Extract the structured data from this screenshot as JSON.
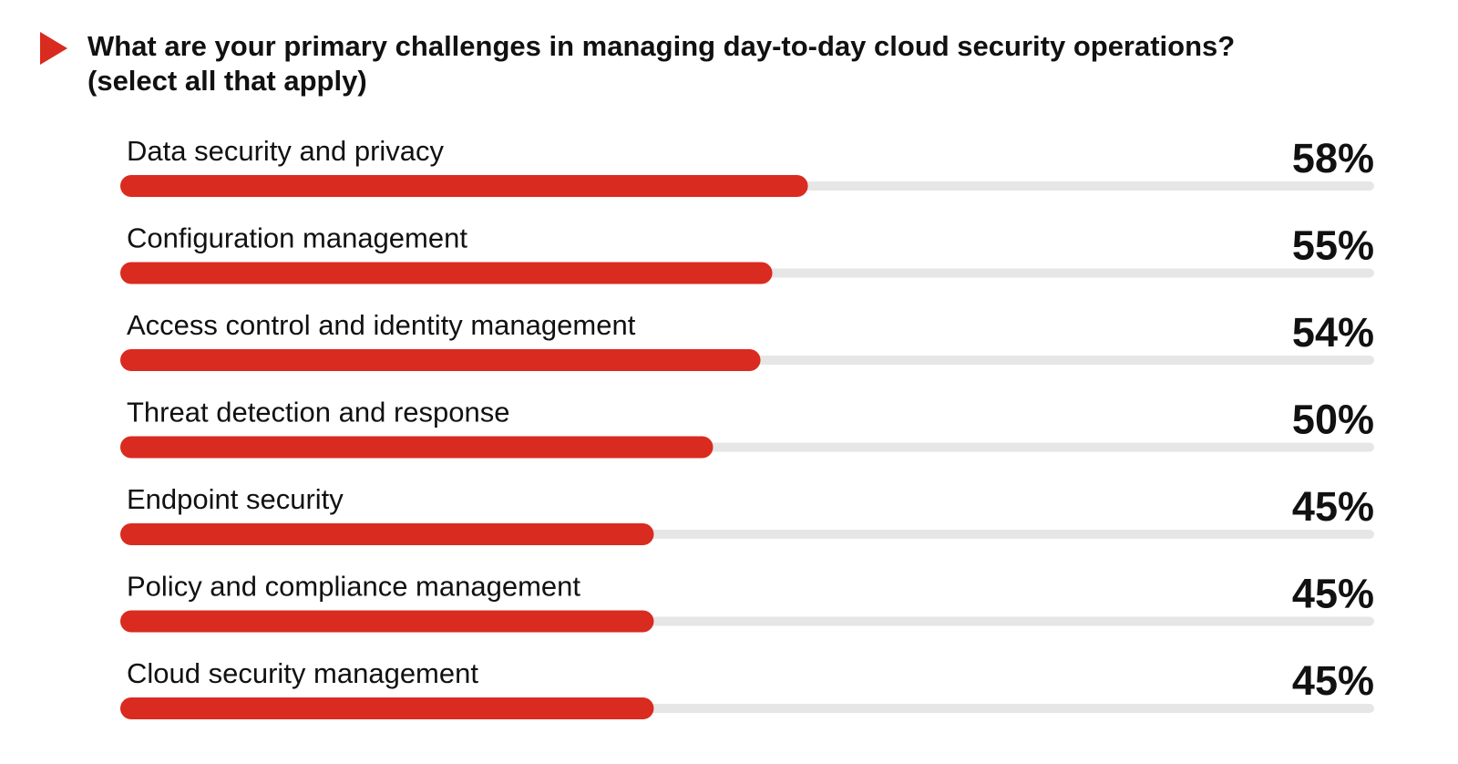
{
  "title_line1": "What are your primary challenges in managing day-to-day cloud security operations?",
  "title_line2": "(select all that apply)",
  "colors": {
    "accent": "#d92b20",
    "track": "#e6e6e6",
    "text": "#111111"
  },
  "chart_data": {
    "type": "bar",
    "orientation": "horizontal",
    "categories": [
      "Data security and privacy",
      "Configuration management",
      "Access control and identity management",
      "Threat detection and response",
      "Endpoint security",
      "Policy and compliance management",
      "Cloud security management"
    ],
    "values": [
      58,
      55,
      54,
      50,
      45,
      45,
      45
    ],
    "value_labels": [
      "58%",
      "55%",
      "54%",
      "50%",
      "45%",
      "45%",
      "45%"
    ],
    "unit": "%",
    "xlim": [
      0,
      100
    ],
    "grid": false,
    "legend": "none"
  }
}
